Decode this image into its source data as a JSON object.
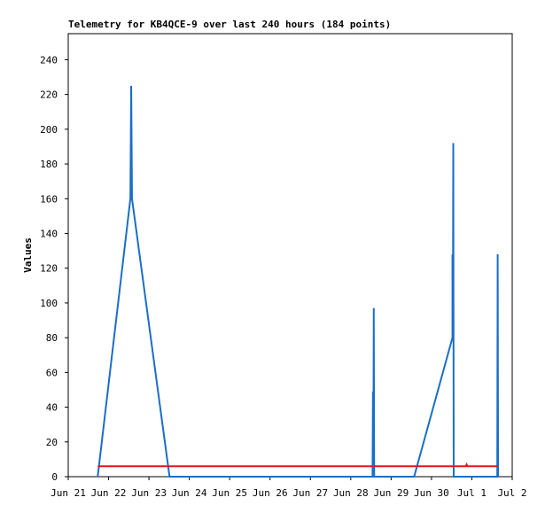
{
  "chart_data": {
    "type": "line",
    "title": "Telemetry for KB4QCE-9 over last 240 hours (184 points)",
    "y_label": "Values",
    "xlim": [
      0,
      11
    ],
    "xticks": [
      {
        "value": 0,
        "label": "Jun 21"
      },
      {
        "value": 1,
        "label": "Jun 22"
      },
      {
        "value": 2,
        "label": "Jun 23"
      },
      {
        "value": 3,
        "label": "Jun 24"
      },
      {
        "value": 4,
        "label": "Jun 25"
      },
      {
        "value": 5,
        "label": "Jun 26"
      },
      {
        "value": 6,
        "label": "Jun 27"
      },
      {
        "value": 7,
        "label": "Jun 28"
      },
      {
        "value": 8,
        "label": "Jun 29"
      },
      {
        "value": 9,
        "label": "Jun 30"
      },
      {
        "value": 10,
        "label": "Jul 1"
      },
      {
        "value": 11,
        "label": "Jul 2"
      }
    ],
    "ylim": [
      0,
      255
    ],
    "yticks": [
      0,
      20,
      40,
      60,
      80,
      100,
      120,
      140,
      160,
      180,
      200,
      220,
      240
    ],
    "series": [
      {
        "color": "#1a6ec8",
        "x": [
          0.73,
          1.54,
          1.56,
          1.58,
          2.51,
          7.54,
          7.55,
          7.56,
          7.57,
          7.58,
          8.57,
          9.52,
          9.52,
          9.53,
          9.54,
          9.55,
          10.63,
          10.64,
          10.65
        ],
        "values": [
          0,
          160,
          225,
          160,
          0,
          0,
          49,
          0,
          97,
          0,
          0,
          80,
          128,
          80,
          192,
          0,
          0,
          128,
          0
        ]
      },
      {
        "color": "#e8141a",
        "x": [
          0.73,
          9.85,
          9.87,
          9.89,
          10.64
        ],
        "values": [
          6,
          6,
          7,
          6,
          6
        ]
      }
    ]
  }
}
